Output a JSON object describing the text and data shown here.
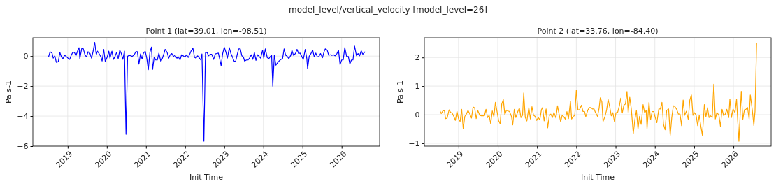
{
  "chart_data": [
    {
      "type": "line",
      "title": "Point 1 (lat=39.01, lon=-98.51)",
      "annotations": [
        "model_level/vertical_velocity [model_level=26]"
      ],
      "xlabel": "Init Time",
      "ylabel": "Pa s-1",
      "grid": true,
      "line_style": "solid",
      "xlim": [
        2018.11,
        2026.97
      ],
      "xticks": [
        2019,
        2020,
        2021,
        2022,
        2023,
        2024,
        2025,
        2026
      ],
      "ylim": [
        -6,
        1.22
      ],
      "yticks": [
        {
          "value": -6,
          "label": "−6"
        },
        {
          "value": -4,
          "label": "−4"
        },
        {
          "value": -2,
          "label": "−2"
        },
        0
      ],
      "series": [
        {
          "color": "#0000ff",
          "x": [
            2018.51,
            2018.55,
            2018.6,
            2018.63,
            2018.67,
            2018.71,
            2018.76,
            2018.8,
            2018.84,
            2018.88,
            2018.92,
            2018.96,
            2019.01,
            2019.05,
            2019.09,
            2019.13,
            2019.17,
            2019.21,
            2019.26,
            2019.29,
            2019.31,
            2019.36,
            2019.4,
            2019.44,
            2019.48,
            2019.52,
            2019.57,
            2019.61,
            2019.65,
            2019.69,
            2019.73,
            2019.76,
            2019.8,
            2019.85,
            2019.88,
            2019.92,
            2019.96,
            2020.01,
            2020.05,
            2020.08,
            2020.13,
            2020.17,
            2020.21,
            2020.25,
            2020.29,
            2020.33,
            2020.37,
            2020.41,
            2020.45,
            2020.49,
            2020.53,
            2020.57,
            2020.61,
            2020.65,
            2020.7,
            2020.74,
            2020.78,
            2020.82,
            2020.86,
            2020.9,
            2020.93,
            2020.98,
            2021.02,
            2021.06,
            2021.1,
            2021.14,
            2021.17,
            2021.21,
            2021.25,
            2021.29,
            2021.33,
            2021.38,
            2021.42,
            2021.46,
            2021.49,
            2021.54,
            2021.58,
            2021.62,
            2021.66,
            2021.7,
            2021.74,
            2021.79,
            2021.83,
            2021.87,
            2021.91,
            2021.95,
            2021.99,
            2022.04,
            2022.08,
            2022.12,
            2022.15,
            2022.2,
            2022.24,
            2022.28,
            2022.32,
            2022.36,
            2022.4,
            2022.43,
            2022.48,
            2022.52,
            2022.56,
            2022.6,
            2022.64,
            2022.68,
            2022.73,
            2022.77,
            2022.81,
            2022.85,
            2022.89,
            2022.92,
            2022.96,
            2023.0,
            2023.04,
            2023.08,
            2023.13,
            2023.17,
            2023.21,
            2023.25,
            2023.29,
            2023.33,
            2023.37,
            2023.41,
            2023.45,
            2023.49,
            2023.52,
            2023.57,
            2023.61,
            2023.65,
            2023.69,
            2023.73,
            2023.77,
            2023.81,
            2023.85,
            2023.89,
            2023.93,
            2023.98,
            2024.01,
            2024.05,
            2024.1,
            2024.14,
            2024.18,
            2024.21,
            2024.24,
            2024.28,
            2024.32,
            2024.36,
            2024.4,
            2024.45,
            2024.49,
            2024.53,
            2024.57,
            2024.61,
            2024.65,
            2024.7,
            2024.73,
            2024.77,
            2024.82,
            2024.86,
            2024.9,
            2024.94,
            2024.98,
            2025.02,
            2025.07,
            2025.11,
            2025.13,
            2025.17,
            2025.21,
            2025.26,
            2025.3,
            2025.34,
            2025.38,
            2025.42,
            2025.46,
            2025.51,
            2025.55,
            2025.58,
            2025.63,
            2025.67,
            2025.71,
            2025.75,
            2025.79,
            2025.83,
            2025.88,
            2025.92,
            2025.96,
            2026.0,
            2026.04,
            2026.08,
            2026.13,
            2026.17,
            2026.21,
            2026.25,
            2026.29,
            2026.33,
            2026.38,
            2026.42,
            2026.46,
            2026.5,
            2026.54,
            2026.6
          ],
          "values": [
            -0.06,
            0.29,
            0.2,
            -0.14,
            0.02,
            -0.42,
            -0.37,
            0.25,
            -0.06,
            -0.17,
            0.05,
            -0.02,
            -0.14,
            -0.22,
            0.05,
            0.25,
            0.25,
            0.02,
            0.4,
            0.56,
            -0.17,
            0.53,
            0.48,
            0.09,
            -0.06,
            0.29,
            0.17,
            -0.14,
            0.33,
            0.91,
            0.09,
            0.33,
            0.17,
            -0.06,
            -0.33,
            0.45,
            -0.37,
            -0.06,
            0.33,
            -0.14,
            0.33,
            -0.22,
            -0.02,
            0.25,
            -0.17,
            0.39,
            0.17,
            -0.22,
            0.33,
            -5.21,
            -0.02,
            0.05,
            0.02,
            -0.02,
            0.09,
            0.29,
            0.29,
            -0.53,
            0.14,
            -0.19,
            0.17,
            0.33,
            -0.14,
            -0.91,
            0.25,
            0.6,
            -0.88,
            -0.06,
            -0.26,
            -0.26,
            0.2,
            -0.37,
            -0.14,
            0.17,
            0.45,
            0.25,
            -0.14,
            0.09,
            0.17,
            -0.03,
            0.05,
            -0.14,
            -0.06,
            -0.26,
            0.09,
            0.02,
            -0.06,
            0.08,
            -0.09,
            0.14,
            0.33,
            0.53,
            -0.08,
            -0.14,
            0.02,
            -0.11,
            -0.26,
            0.14,
            -5.67,
            0.22,
            0.25,
            0.02,
            0.12,
            0.12,
            -0.22,
            0.14,
            0.17,
            0.2,
            -0.26,
            -0.64,
            0.17,
            0.59,
            0.29,
            -0.14,
            0.56,
            0.17,
            -0.06,
            -0.33,
            -0.37,
            0.09,
            0.48,
            0.48,
            0.02,
            -0.06,
            -0.33,
            -0.26,
            -0.26,
            -0.11,
            0.09,
            -0.22,
            0.25,
            -0.29,
            0.09,
            -0.02,
            -0.14,
            0.4,
            -0.14,
            0.48,
            -0.11,
            -0.17,
            -0.02,
            0.05,
            -2.0,
            0.05,
            -0.6,
            -0.45,
            -0.33,
            -0.22,
            -0.17,
            0.48,
            0.05,
            -0.02,
            -0.17,
            0.05,
            0.39,
            0.05,
            0.17,
            0.45,
            0.17,
            0.2,
            -0.02,
            -0.22,
            0.45,
            -0.17,
            -0.84,
            -0.02,
            0.14,
            0.4,
            -0.06,
            0.2,
            -0.06,
            -0.02,
            0.17,
            -0.11,
            0.29,
            0.48,
            0.4,
            0.05,
            0.09,
            0.05,
            0.09,
            0.02,
            0.17,
            0.39,
            -0.57,
            -0.26,
            -0.25,
            0.56,
            -0.06,
            -0.02,
            -0.53,
            -0.26,
            -0.26,
            0.67,
            0.02,
            0.17,
            0.02,
            0.36,
            0.12,
            0.29
          ]
        }
      ]
    },
    {
      "type": "line",
      "title": "Point 2 (lat=33.76, lon=-84.40)",
      "xlabel": "Init Time",
      "ylabel": "Pa s-1",
      "grid": true,
      "line_style": "solid",
      "xlim": [
        2018.13,
        2026.96
      ],
      "xticks": [
        2019,
        2020,
        2021,
        2022,
        2023,
        2024,
        2025,
        2026
      ],
      "ylim": [
        -1.1,
        2.69
      ],
      "yticks": [
        {
          "value": -1,
          "label": "−1"
        },
        0,
        1,
        2
      ],
      "series": [
        {
          "color": "#ffa500",
          "x": [
            2018.53,
            2018.56,
            2018.6,
            2018.64,
            2018.67,
            2018.71,
            2018.76,
            2018.8,
            2018.84,
            2018.88,
            2018.92,
            2018.96,
            2019.0,
            2019.04,
            2019.08,
            2019.12,
            2019.16,
            2019.2,
            2019.24,
            2019.29,
            2019.33,
            2019.37,
            2019.41,
            2019.45,
            2019.49,
            2019.54,
            2019.58,
            2019.62,
            2019.66,
            2019.7,
            2019.74,
            2019.78,
            2019.82,
            2019.86,
            2019.9,
            2019.94,
            2019.98,
            2020.02,
            2020.06,
            2020.1,
            2020.14,
            2020.18,
            2020.22,
            2020.26,
            2020.3,
            2020.35,
            2020.38,
            2020.42,
            2020.46,
            2020.51,
            2020.55,
            2020.59,
            2020.63,
            2020.66,
            2020.7,
            2020.74,
            2020.79,
            2020.83,
            2020.87,
            2020.91,
            2020.95,
            2020.99,
            2021.03,
            2021.07,
            2021.11,
            2021.14,
            2021.18,
            2021.23,
            2021.27,
            2021.31,
            2021.35,
            2021.39,
            2021.43,
            2021.48,
            2021.52,
            2021.56,
            2021.6,
            2021.64,
            2021.68,
            2021.72,
            2021.76,
            2021.8,
            2021.85,
            2021.88,
            2021.92,
            2021.96,
            2022.0,
            2022.04,
            2022.08,
            2022.13,
            2022.17,
            2022.21,
            2022.24,
            2022.29,
            2022.33,
            2022.37,
            2022.41,
            2022.45,
            2022.49,
            2022.54,
            2022.58,
            2022.61,
            2022.65,
            2022.68,
            2022.73,
            2022.77,
            2022.81,
            2022.85,
            2022.89,
            2022.93,
            2022.97,
            2023.01,
            2023.05,
            2023.1,
            2023.13,
            2023.17,
            2023.21,
            2023.25,
            2023.29,
            2023.32,
            2023.36,
            2023.4,
            2023.45,
            2023.49,
            2023.53,
            2023.57,
            2023.61,
            2023.65,
            2023.7,
            2023.74,
            2023.78,
            2023.8,
            2023.85,
            2023.89,
            2023.93,
            2023.97,
            2024.01,
            2024.05,
            2024.1,
            2024.14,
            2024.18,
            2024.22,
            2024.26,
            2024.3,
            2024.35,
            2024.39,
            2024.43,
            2024.47,
            2024.51,
            2024.55,
            2024.6,
            2024.64,
            2024.68,
            2024.72,
            2024.76,
            2024.8,
            2024.85,
            2024.89,
            2024.93,
            2024.97,
            2025.01,
            2025.05,
            2025.09,
            2025.13,
            2025.17,
            2025.21,
            2025.26,
            2025.3,
            2025.34,
            2025.38,
            2025.42,
            2025.46,
            2025.5,
            2025.54,
            2025.58,
            2025.63,
            2025.67,
            2025.71,
            2025.75,
            2025.79,
            2025.83,
            2025.88,
            2025.91,
            2025.95,
            2025.99,
            2026.04,
            2026.08,
            2026.11,
            2026.14,
            2026.2,
            2026.24,
            2026.28,
            2026.32,
            2026.36,
            2026.4,
            2026.43,
            2026.48,
            2026.52,
            2026.55,
            2026.59
          ],
          "values": [
            0.13,
            0.04,
            0.13,
            0.15,
            -0.14,
            -0.12,
            0.17,
            0.08,
            0.05,
            -0.06,
            -0.2,
            0.12,
            -0.14,
            -0.24,
            0.19,
            -0.49,
            -0.06,
            0.02,
            0.15,
            0.02,
            -0.12,
            0.27,
            0.24,
            -0.14,
            0.15,
            -0.02,
            -0.04,
            -0.04,
            -0.04,
            0.19,
            -0.1,
            -0.02,
            -0.32,
            0.13,
            -0.07,
            0.43,
            0.12,
            -0.2,
            -0.32,
            0.37,
            0.53,
            0,
            0.16,
            0.13,
            0.11,
            -0.07,
            -0.36,
            0.19,
            -0.1,
            0.11,
            0.23,
            -0.1,
            -0.02,
            0.76,
            -0.1,
            -0.22,
            0.25,
            -0.15,
            0.28,
            -0.02,
            -0.06,
            -0.2,
            -0.1,
            -0.18,
            0.17,
            0.25,
            -0.22,
            0.2,
            -0.46,
            -0.04,
            0.02,
            -0.1,
            0.08,
            -0.12,
            0.31,
            0.02,
            -0.25,
            -0.02,
            -0.07,
            -0.16,
            0.11,
            -0.14,
            0.47,
            -0.15,
            -0.06,
            -0.03,
            0.86,
            0.17,
            0.17,
            0.33,
            0.11,
            0.11,
            -0.07,
            0.15,
            0.25,
            0.25,
            0.2,
            0.2,
            0.07,
            -0.06,
            0.23,
            0.59,
            0.45,
            -0.24,
            -0.06,
            0.16,
            0.53,
            0.27,
            -0.04,
            0.07,
            -0.24,
            0.07,
            0.07,
            0.33,
            0.58,
            0.06,
            0.33,
            0.37,
            0.81,
            0.07,
            0.61,
            0.2,
            -0.66,
            -0.18,
            0.15,
            -0.5,
            -0.06,
            -0.34,
            0.35,
            0.06,
            0.15,
            -0.49,
            0.43,
            -0.18,
            0.11,
            0.11,
            -0.1,
            -0.28,
            0.2,
            0.2,
            0.43,
            -0.34,
            -0.53,
            0.15,
            0.2,
            -0.72,
            -0.1,
            0.31,
            0.28,
            0.2,
            0.02,
            0.02,
            -0.38,
            0.51,
            -0.02,
            0.12,
            -0.16,
            0.51,
            0.69,
            -0.02,
            0.07,
            -0.02,
            -0.38,
            -0.02,
            -0.4,
            -0.72,
            0.35,
            -0.07,
            0.24,
            -0.1,
            -0.04,
            -0.1,
            1.07,
            -0.15,
            0.08,
            -0.02,
            -0.41,
            0.19,
            -0.03,
            0.01,
            0.19,
            -0.1,
            0.55,
            -0.1,
            0.2,
            0.07,
            0.54,
            -0.22,
            -0.93,
            0.82,
            -0.16,
            0.17,
            0.19,
            0.25,
            -0.15,
            0.69,
            0.17,
            -0.38,
            0.12,
            2.5
          ]
        }
      ]
    }
  ]
}
